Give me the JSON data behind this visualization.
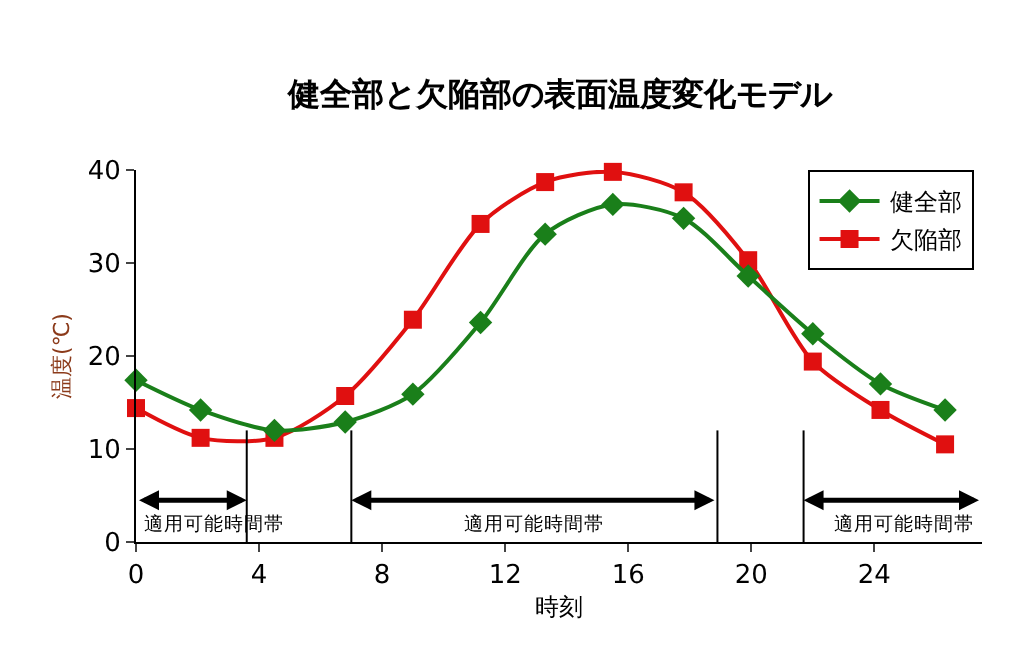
{
  "chart_data": {
    "type": "line",
    "title": "健全部と欠陥部の表面温度変化モデル",
    "xlabel": "時刻",
    "ylabel": "温度(℃)",
    "x": [
      0,
      2.1,
      4.5,
      6.8,
      9,
      11.2,
      13.3,
      15.5,
      17.8,
      19.9,
      22,
      24.2,
      26.3
    ],
    "series": [
      {
        "name": "健全部",
        "color": "#1a7f1a",
        "marker": "diamond",
        "values": [
          17.4,
          14.2,
          12,
          12.9,
          15.9,
          23.6,
          33.1,
          36.3,
          34.8,
          28.6,
          22.4,
          17,
          14.2
        ]
      },
      {
        "name": "欠陥部",
        "color": "#e01010",
        "marker": "square",
        "values": [
          14.4,
          11.2,
          11.2,
          15.7,
          23.9,
          34.2,
          38.7,
          39.8,
          37.6,
          30.3,
          19.4,
          14.2,
          10.5
        ]
      }
    ],
    "xlim": [
      0,
      27.5
    ],
    "xticks": [
      0,
      4,
      8,
      12,
      16,
      20,
      24
    ],
    "ylim": [
      0,
      40
    ],
    "yticks": [
      0,
      10,
      20,
      30,
      40
    ],
    "ref_lines": [
      {
        "axis": "x",
        "value": 3.6,
        "color": "#000000"
      },
      {
        "axis": "x",
        "value": 7,
        "color": "#000000"
      },
      {
        "axis": "x",
        "value": 18.9,
        "color": "#000000"
      },
      {
        "axis": "x",
        "value": 21.7,
        "color": "#000000"
      }
    ],
    "annotations": [
      {
        "text": "適用可能時間帯",
        "x": 3.6,
        "y": 4.5
      },
      "適用可能時間帯",
      {
        "text": "適用可能時間帯",
        "x": 21.7,
        "y": 4.5
      }
    ],
    "legend": "top right"
  }
}
